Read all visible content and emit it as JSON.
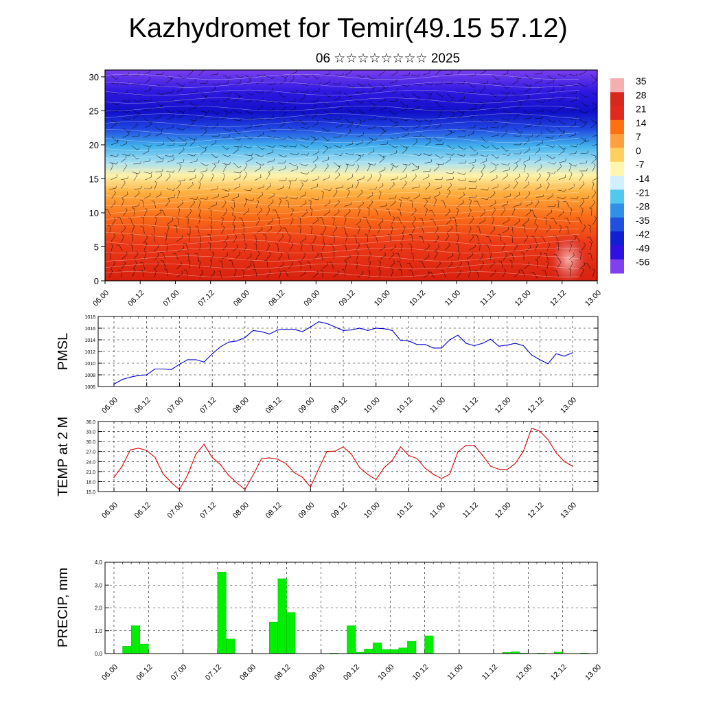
{
  "title": "Kazhydromet for Temir(49.15 57.12)",
  "subtitle": "06 ☆☆☆☆☆☆☆☆ 2025",
  "chart_data": [
    {
      "type": "heatmap",
      "y_ticks": [
        "0",
        "5",
        "10",
        "15",
        "20",
        "25",
        "30"
      ],
      "ylim": [
        0,
        31
      ],
      "x_ticks": [
        "06.00",
        "06.12",
        "07.00",
        "07.12",
        "08.00",
        "08.12",
        "09.00",
        "09.12",
        "10.00",
        "10.12",
        "11.00",
        "11.12",
        "12.00",
        "12.12",
        "13.00"
      ],
      "colorbar_labels": [
        "35",
        "28",
        "21",
        "14",
        "7",
        "0",
        "-7",
        "-14",
        "-21",
        "-28",
        "-35",
        "-42",
        "-49",
        "-56"
      ],
      "colorbar_colors": [
        "#f4b0b0",
        "#d8281e",
        "#e02a1e",
        "#ff7010",
        "#ffa040",
        "#ffd060",
        "#fff7b0",
        "#d0f0ff",
        "#50c8f0",
        "#3090e8",
        "#2050e0",
        "#1020d0",
        "#3010e0",
        "#8040f0"
      ],
      "overlay": "wind-barbs"
    },
    {
      "type": "line",
      "ylabel": "PMSL",
      "color": "#0000cc",
      "ylim": [
        1006,
        1018
      ],
      "y_ticks": [
        "1006",
        "1008",
        "1010",
        "1012",
        "1014",
        "1016",
        "1018"
      ],
      "x_ticks": [
        "06.00",
        "06.12",
        "07.00",
        "07.12",
        "08.00",
        "08.12",
        "09.00",
        "09.12",
        "10.00",
        "10.12",
        "11.00",
        "11.12",
        "12.00",
        "12.12",
        "13.00"
      ],
      "x_hours": [
        0,
        3,
        6,
        9,
        12,
        15,
        18,
        21,
        24,
        27,
        30,
        33,
        36,
        39,
        42,
        45,
        48,
        51,
        54,
        57,
        60,
        63,
        66,
        69,
        72,
        75,
        78,
        81,
        84,
        87,
        90,
        93,
        96,
        99,
        102,
        105,
        108,
        111,
        114,
        117,
        120,
        123,
        126,
        129,
        132,
        135,
        138,
        141,
        144,
        147,
        150,
        153,
        156,
        159,
        162,
        165,
        168
      ],
      "values": [
        1006.4,
        1007.2,
        1007.6,
        1007.9,
        1008.0,
        1009.0,
        1009.0,
        1008.9,
        1009.8,
        1010.6,
        1010.6,
        1010.2,
        1011.6,
        1012.8,
        1013.6,
        1013.8,
        1014.4,
        1015.6,
        1015.4,
        1015.0,
        1015.7,
        1015.8,
        1015.8,
        1015.4,
        1016.2,
        1017.1,
        1016.8,
        1016.2,
        1015.6,
        1015.7,
        1016.0,
        1015.6,
        1016.0,
        1015.9,
        1015.6,
        1013.9,
        1013.8,
        1013.2,
        1013.2,
        1012.6,
        1012.6,
        1014.0,
        1014.8,
        1013.4,
        1013.0,
        1013.4,
        1014.1,
        1012.9,
        1013.1,
        1013.4,
        1013.0,
        1011.4,
        1010.6,
        1009.9,
        1011.6,
        1011.2,
        1011.8
      ]
    },
    {
      "type": "line",
      "ylabel": "TEMP at 2 M",
      "color": "#dd0000",
      "ylim": [
        15,
        36
      ],
      "y_ticks": [
        "15.0",
        "18.0",
        "21.0",
        "24.0",
        "27.0",
        "30.0",
        "33.0",
        "36.0"
      ],
      "x_ticks": [
        "06.00",
        "06.12",
        "07.00",
        "07.12",
        "08.00",
        "08.12",
        "09.00",
        "09.12",
        "10.00",
        "10.12",
        "11.00",
        "11.12",
        "12.00",
        "12.12",
        "13.00"
      ],
      "x_hours": [
        0,
        3,
        6,
        9,
        12,
        15,
        18,
        21,
        24,
        27,
        30,
        33,
        36,
        39,
        42,
        45,
        48,
        51,
        54,
        57,
        60,
        63,
        66,
        69,
        72,
        75,
        78,
        81,
        84,
        87,
        90,
        93,
        96,
        99,
        102,
        105,
        108,
        111,
        114,
        117,
        120,
        123,
        126,
        129,
        132,
        135,
        138,
        141,
        144,
        147,
        150,
        153,
        156,
        159,
        162,
        165,
        168
      ],
      "values": [
        19.2,
        22.6,
        27.5,
        28.0,
        27.3,
        25.3,
        20.3,
        17.7,
        15.6,
        20.0,
        26.2,
        29.2,
        25.2,
        23.1,
        19.9,
        17.6,
        15.6,
        20.0,
        24.8,
        25.1,
        24.7,
        23.4,
        20.7,
        19.3,
        16.4,
        21.8,
        27.0,
        27.1,
        28.4,
        26.2,
        22.2,
        20.1,
        18.6,
        22.2,
        24.4,
        28.4,
        25.8,
        24.9,
        22.0,
        20.2,
        18.9,
        20.2,
        26.9,
        28.9,
        28.9,
        25.9,
        22.6,
        21.7,
        21.6,
        23.4,
        27.1,
        34.0,
        33.1,
        30.6,
        26.6,
        24.0,
        22.6
      ]
    },
    {
      "type": "bar",
      "ylabel": "PRECIP, mm",
      "color": "#00ee00",
      "ylim": [
        0,
        4
      ],
      "y_ticks": [
        "0.0",
        "1.0",
        "2.0",
        "3.0",
        "4.0"
      ],
      "x_ticks": [
        "06.00",
        "06.12",
        "07.00",
        "07.12",
        "08.00",
        "08.12",
        "09.00",
        "09.12",
        "10.00",
        "10.12",
        "11.00",
        "11.12",
        "12.00",
        "12.12",
        "13.00"
      ],
      "bars": [
        {
          "start": 3,
          "end": 6,
          "value": 0.32
        },
        {
          "start": 6,
          "end": 9,
          "value": 1.22
        },
        {
          "start": 9,
          "end": 12,
          "value": 0.42
        },
        {
          "start": 36,
          "end": 39,
          "value": 3.57
        },
        {
          "start": 39,
          "end": 42,
          "value": 0.64
        },
        {
          "start": 54,
          "end": 57,
          "value": 1.38
        },
        {
          "start": 57,
          "end": 60,
          "value": 3.28
        },
        {
          "start": 60,
          "end": 63,
          "value": 1.8
        },
        {
          "start": 75,
          "end": 78,
          "value": 0.02
        },
        {
          "start": 81,
          "end": 84,
          "value": 1.22
        },
        {
          "start": 84,
          "end": 87,
          "value": 0.06
        },
        {
          "start": 87,
          "end": 90,
          "value": 0.2
        },
        {
          "start": 90,
          "end": 93,
          "value": 0.47
        },
        {
          "start": 93,
          "end": 96,
          "value": 0.18
        },
        {
          "start": 96,
          "end": 99,
          "value": 0.18
        },
        {
          "start": 99,
          "end": 102,
          "value": 0.25
        },
        {
          "start": 102,
          "end": 105,
          "value": 0.54
        },
        {
          "start": 108,
          "end": 111,
          "value": 0.78
        },
        {
          "start": 135,
          "end": 138,
          "value": 0.05
        },
        {
          "start": 138,
          "end": 141,
          "value": 0.08
        },
        {
          "start": 141,
          "end": 144,
          "value": 0.02
        },
        {
          "start": 147,
          "end": 150,
          "value": 0.02
        },
        {
          "start": 153,
          "end": 156,
          "value": 0.07
        },
        {
          "start": 162,
          "end": 165,
          "value": 0.02
        }
      ]
    }
  ]
}
